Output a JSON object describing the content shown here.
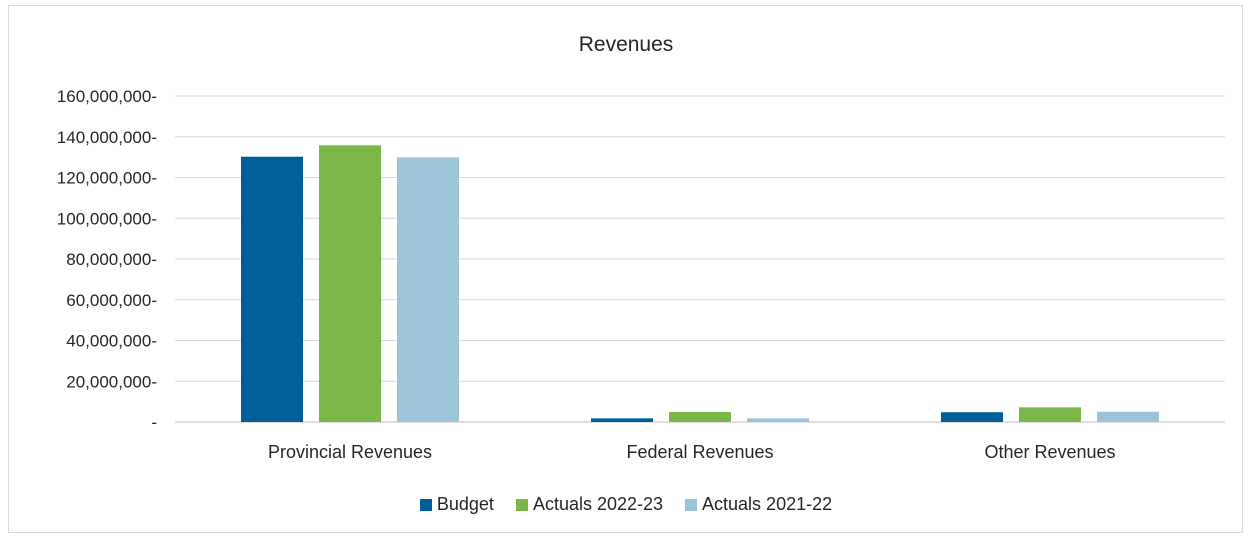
{
  "chart_data": {
    "type": "bar",
    "title": "Revenues",
    "categories": [
      "Provincial Revenues",
      "Federal Revenues",
      "Other Revenues"
    ],
    "series": [
      {
        "name": "Budget",
        "color": "#005f99",
        "values": [
          130200000,
          1800000,
          4800000
        ]
      },
      {
        "name": "Actuals 2022-23",
        "color": "#7ab648",
        "values": [
          135800000,
          4900000,
          7200000
        ]
      },
      {
        "name": "Actuals 2021-22",
        "color": "#9dc3d9",
        "values": [
          129900000,
          1800000,
          5000000
        ]
      }
    ],
    "ylim": [
      0,
      160000000
    ],
    "yticks": [
      0,
      20000000,
      40000000,
      60000000,
      80000000,
      100000000,
      120000000,
      140000000,
      160000000
    ],
    "ytick_labels": [
      "-",
      "20,000,000-",
      "40,000,000-",
      "60,000,000-",
      "80,000,000-",
      "100,000,000-",
      "120,000,000-",
      "140,000,000-",
      "160,000,000-"
    ],
    "grid": true,
    "legend_position": "bottom"
  }
}
